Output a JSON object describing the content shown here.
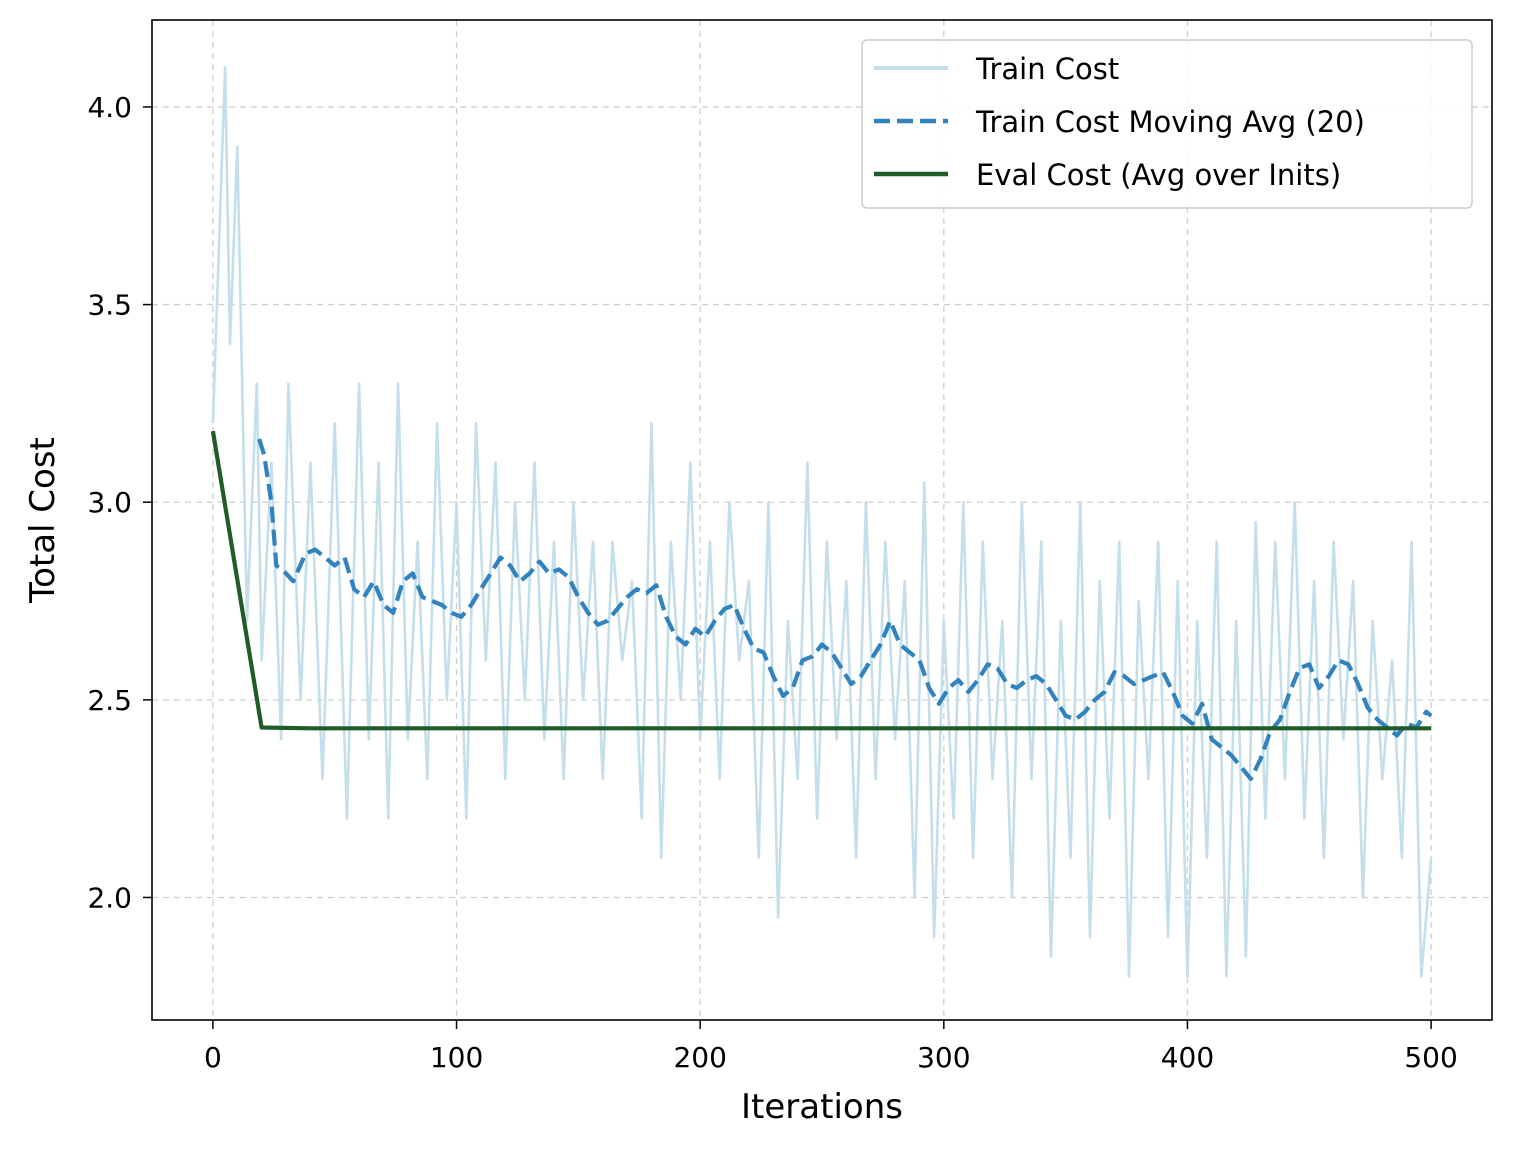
{
  "chart_data": {
    "type": "line",
    "xlabel": "Iterations",
    "ylabel": "Total Cost",
    "xlim": [
      -25,
      525
    ],
    "ylim": [
      1.69,
      4.22
    ],
    "xticks": [
      0,
      100,
      200,
      300,
      400,
      500
    ],
    "yticks": [
      2.0,
      2.5,
      3.0,
      3.5,
      4.0
    ],
    "xtick_labels": [
      "0",
      "100",
      "200",
      "300",
      "400",
      "500"
    ],
    "ytick_labels": [
      "2.0",
      "2.5",
      "3.0",
      "3.5",
      "4.0"
    ],
    "grid": true,
    "legend_position": "top-right",
    "series": [
      {
        "name": "Train Cost",
        "color": "#c4dfeb",
        "style": "solid",
        "x": [
          0,
          5,
          7,
          10,
          14,
          18,
          20,
          24,
          28,
          31,
          36,
          40,
          45,
          50,
          55,
          60,
          64,
          68,
          72,
          76,
          80,
          84,
          88,
          92,
          96,
          100,
          104,
          108,
          112,
          116,
          120,
          124,
          128,
          132,
          136,
          140,
          144,
          148,
          152,
          156,
          160,
          164,
          168,
          172,
          176,
          180,
          184,
          188,
          192,
          196,
          200,
          204,
          208,
          212,
          216,
          220,
          224,
          228,
          232,
          236,
          240,
          244,
          248,
          252,
          256,
          260,
          264,
          268,
          272,
          276,
          280,
          284,
          288,
          292,
          296,
          300,
          304,
          308,
          312,
          316,
          320,
          324,
          328,
          332,
          336,
          340,
          344,
          348,
          352,
          356,
          360,
          364,
          368,
          372,
          376,
          380,
          384,
          388,
          392,
          396,
          400,
          404,
          408,
          412,
          416,
          420,
          424,
          428,
          432,
          436,
          440,
          444,
          448,
          452,
          456,
          460,
          464,
          468,
          472,
          476,
          480,
          484,
          488,
          492,
          496,
          500
        ],
        "y": [
          3.2,
          4.1,
          3.4,
          3.9,
          2.7,
          3.3,
          2.6,
          3.1,
          2.4,
          3.3,
          2.5,
          3.1,
          2.3,
          3.2,
          2.2,
          3.3,
          2.4,
          3.1,
          2.2,
          3.3,
          2.4,
          2.9,
          2.3,
          3.2,
          2.5,
          3.0,
          2.2,
          3.2,
          2.6,
          3.1,
          2.3,
          3.0,
          2.5,
          3.1,
          2.4,
          2.9,
          2.3,
          3.0,
          2.5,
          2.9,
          2.3,
          2.9,
          2.6,
          2.8,
          2.2,
          3.2,
          2.1,
          2.9,
          2.5,
          3.1,
          2.4,
          2.9,
          2.3,
          3.0,
          2.6,
          2.8,
          2.1,
          3.0,
          1.95,
          2.7,
          2.3,
          3.1,
          2.2,
          2.9,
          2.4,
          2.8,
          2.1,
          3.0,
          2.3,
          2.9,
          2.4,
          2.8,
          2.0,
          3.05,
          1.9,
          2.7,
          2.2,
          3.0,
          2.1,
          2.9,
          2.3,
          2.7,
          2.0,
          3.0,
          2.3,
          2.9,
          1.85,
          2.7,
          2.1,
          3.0,
          1.9,
          2.8,
          2.2,
          2.9,
          1.8,
          2.75,
          2.3,
          2.9,
          1.9,
          2.8,
          1.8,
          2.7,
          2.1,
          2.9,
          1.8,
          2.7,
          1.85,
          2.95,
          2.2,
          2.9,
          2.3,
          3.0,
          2.2,
          2.8,
          2.1,
          2.9,
          2.4,
          2.8,
          2.0,
          2.7,
          2.3,
          2.6,
          2.1,
          2.9,
          1.8,
          2.1
        ]
      },
      {
        "name": "Train Cost Moving Avg (20)",
        "color": "#3182bd",
        "style": "dashed",
        "x": [
          19,
          21,
          24,
          26,
          30,
          33,
          38,
          42,
          46,
          50,
          54,
          58,
          62,
          66,
          70,
          74,
          78,
          82,
          86,
          90,
          94,
          98,
          102,
          106,
          110,
          114,
          118,
          122,
          126,
          130,
          134,
          138,
          142,
          146,
          150,
          154,
          158,
          162,
          166,
          170,
          174,
          178,
          182,
          186,
          190,
          194,
          198,
          202,
          206,
          210,
          214,
          218,
          222,
          226,
          230,
          234,
          238,
          242,
          246,
          250,
          254,
          258,
          262,
          266,
          270,
          274,
          278,
          282,
          286,
          290,
          294,
          298,
          302,
          306,
          310,
          314,
          318,
          322,
          326,
          330,
          334,
          338,
          342,
          346,
          350,
          354,
          358,
          362,
          366,
          370,
          374,
          378,
          382,
          386,
          390,
          394,
          398,
          402,
          406,
          410,
          414,
          418,
          422,
          426,
          430,
          434,
          438,
          442,
          446,
          450,
          454,
          458,
          462,
          466,
          470,
          474,
          478,
          482,
          486,
          490,
          494,
          498,
          500
        ],
        "y": [
          3.16,
          3.12,
          3.0,
          2.84,
          2.82,
          2.8,
          2.87,
          2.88,
          2.86,
          2.84,
          2.86,
          2.78,
          2.76,
          2.8,
          2.74,
          2.72,
          2.8,
          2.82,
          2.76,
          2.75,
          2.74,
          2.72,
          2.71,
          2.74,
          2.78,
          2.82,
          2.86,
          2.84,
          2.8,
          2.82,
          2.85,
          2.82,
          2.83,
          2.81,
          2.76,
          2.72,
          2.69,
          2.7,
          2.73,
          2.76,
          2.78,
          2.77,
          2.79,
          2.71,
          2.66,
          2.64,
          2.68,
          2.66,
          2.7,
          2.73,
          2.74,
          2.68,
          2.63,
          2.62,
          2.56,
          2.51,
          2.53,
          2.6,
          2.61,
          2.64,
          2.62,
          2.58,
          2.54,
          2.56,
          2.6,
          2.64,
          2.7,
          2.64,
          2.62,
          2.6,
          2.53,
          2.49,
          2.53,
          2.55,
          2.52,
          2.55,
          2.59,
          2.58,
          2.54,
          2.53,
          2.55,
          2.56,
          2.54,
          2.5,
          2.46,
          2.45,
          2.47,
          2.5,
          2.52,
          2.57,
          2.56,
          2.54,
          2.55,
          2.56,
          2.57,
          2.52,
          2.46,
          2.44,
          2.49,
          2.4,
          2.38,
          2.36,
          2.33,
          2.3,
          2.35,
          2.42,
          2.45,
          2.52,
          2.58,
          2.59,
          2.53,
          2.56,
          2.6,
          2.59,
          2.54,
          2.48,
          2.45,
          2.43,
          2.41,
          2.44,
          2.43,
          2.47,
          2.46
        ]
      },
      {
        "name": "Eval Cost (Avg over Inits)",
        "color": "#1f5c2a",
        "style": "solid",
        "x": [
          0,
          20,
          40,
          100,
          200,
          300,
          400,
          500
        ],
        "y": [
          3.18,
          2.43,
          2.428,
          2.428,
          2.428,
          2.428,
          2.428,
          2.428
        ]
      }
    ]
  }
}
